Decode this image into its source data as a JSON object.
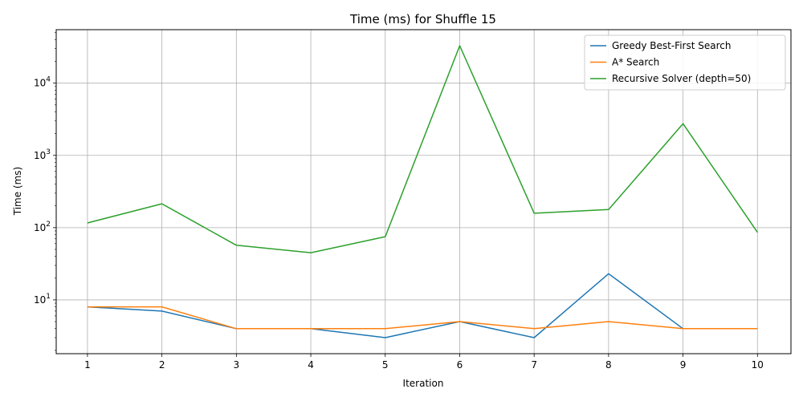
{
  "chart_data": {
    "type": "line",
    "title": "Time (ms) for Shuffle 15",
    "xlabel": "Iteration",
    "ylabel": "Time (ms)",
    "yscale": "log",
    "ylim": [
      1.8,
      55000
    ],
    "xlim": [
      0.58,
      10.45
    ],
    "grid": true,
    "legend_position": "top-right",
    "x": [
      1,
      2,
      3,
      4,
      5,
      6,
      7,
      8,
      9,
      10
    ],
    "x_ticks": [
      "1",
      "2",
      "3",
      "4",
      "5",
      "6",
      "7",
      "8",
      "9",
      "10"
    ],
    "y_ticks": [
      {
        "value": 10,
        "base": "10",
        "exp": "1"
      },
      {
        "value": 100,
        "base": "10",
        "exp": "2"
      },
      {
        "value": 1000,
        "base": "10",
        "exp": "3"
      },
      {
        "value": 10000,
        "base": "10",
        "exp": "4"
      }
    ],
    "series": [
      {
        "name": "Greedy Best-First Search",
        "color": "#1f77b4",
        "values": [
          8,
          7,
          4,
          4,
          3,
          5,
          3,
          23,
          4,
          4
        ]
      },
      {
        "name": "A* Search",
        "color": "#ff7f0e",
        "values": [
          8,
          8,
          4,
          4,
          4,
          5,
          4,
          5,
          4,
          4
        ]
      },
      {
        "name": "Recursive Solver (depth=50)",
        "color": "#2ca02c",
        "values": [
          116,
          214,
          57,
          45,
          75,
          33000,
          158,
          178,
          2750,
          86
        ]
      }
    ]
  }
}
